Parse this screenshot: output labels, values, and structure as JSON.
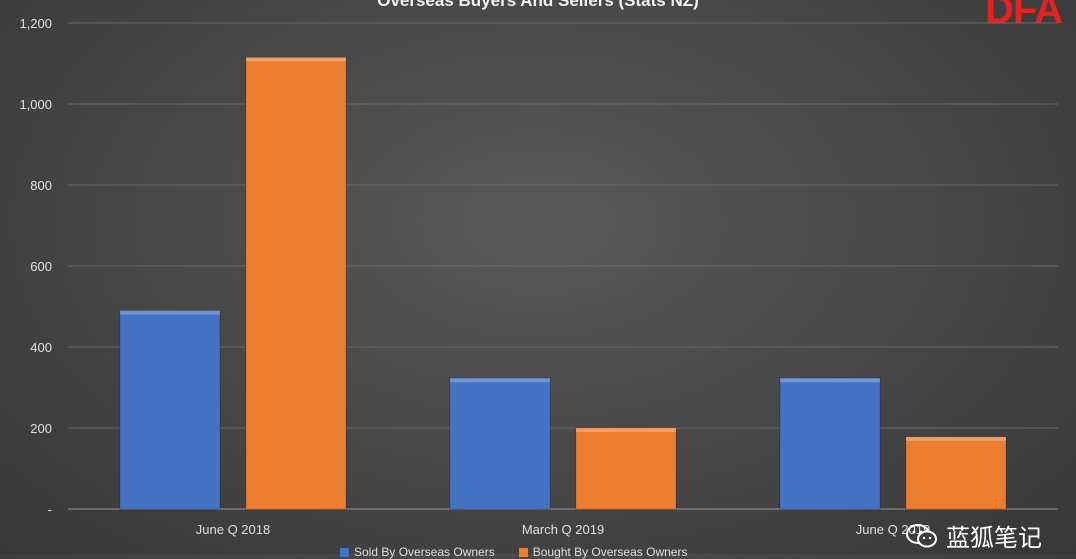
{
  "chart_data": {
    "type": "bar",
    "title": "Overseas Buyers And Sellers (Stats NZ)",
    "categories": [
      "June Q 2018",
      "March Q 2019",
      "June Q 2019"
    ],
    "series": [
      {
        "name": "Sold By Overseas Owners",
        "color": "#4472c4",
        "values": [
          490,
          323,
          323
        ]
      },
      {
        "name": "Bought By Overseas Owners",
        "color": "#ed7d31",
        "values": [
          1115,
          200,
          178
        ]
      }
    ],
    "ylim": [
      0,
      1200
    ],
    "yticks": [
      {
        "value": 0,
        "label": "-"
      },
      {
        "value": 200,
        "label": "200"
      },
      {
        "value": 400,
        "label": "400"
      },
      {
        "value": 600,
        "label": "600"
      },
      {
        "value": 800,
        "label": "800"
      },
      {
        "value": 1000,
        "label": "1,000"
      },
      {
        "value": 1200,
        "label": "1,200"
      }
    ],
    "grid": true,
    "legend": "bottom"
  },
  "logo_text": "DFA",
  "watermark_text": "蓝狐笔记",
  "watermark_icon": "wechat-icon"
}
